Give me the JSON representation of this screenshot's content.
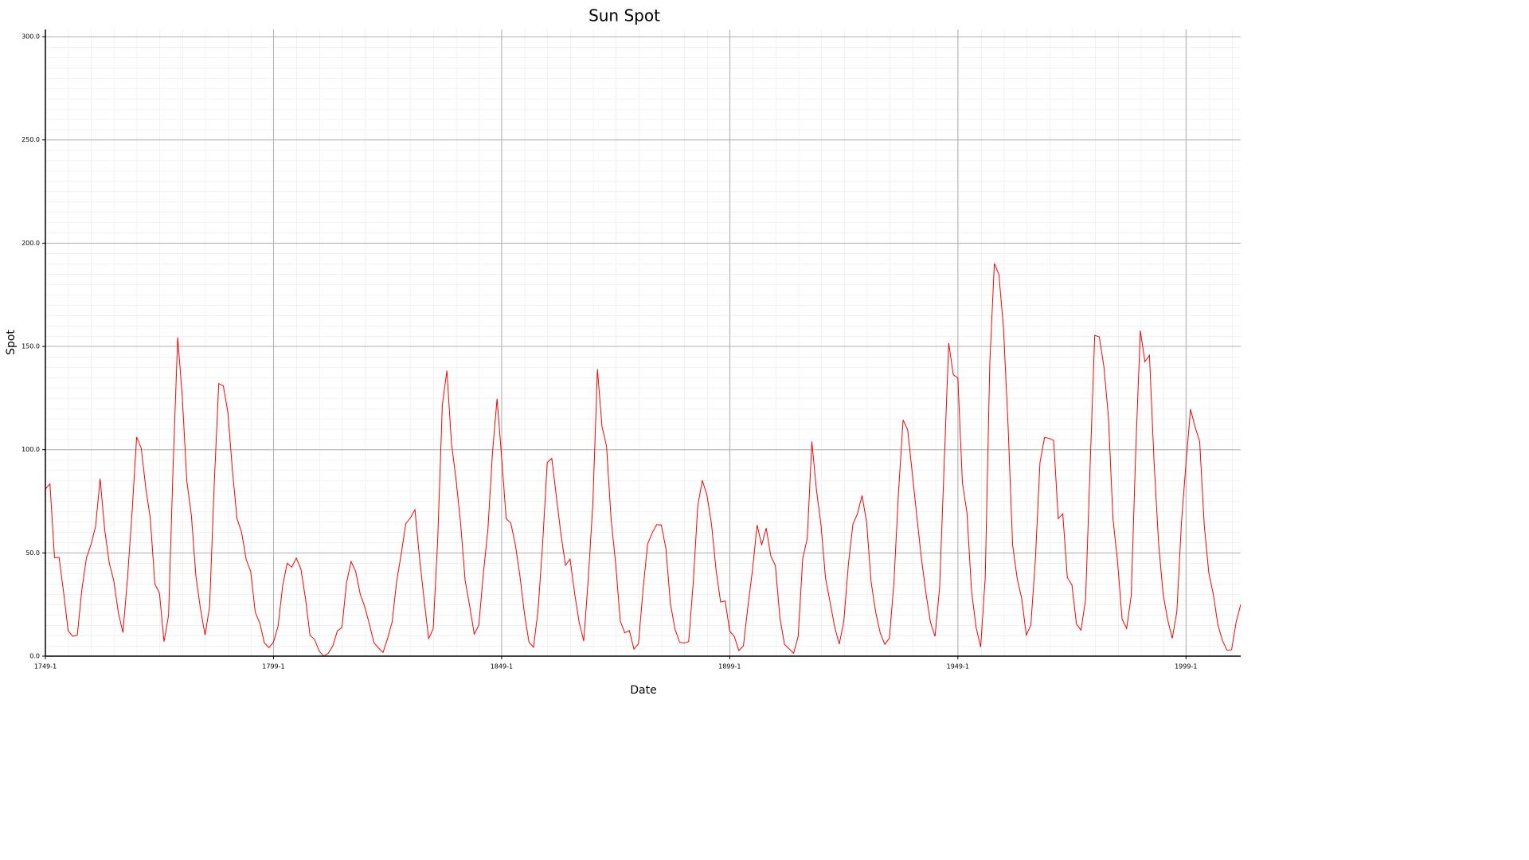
{
  "chart_data": {
    "type": "line",
    "title": "Sun Spot",
    "xlabel": "Date",
    "ylabel": "Spot",
    "xlim": [
      1749,
      2011
    ],
    "ylim": [
      0,
      303.5
    ],
    "xticks": [
      {
        "value": 1749,
        "label": "1749-1"
      },
      {
        "value": 1799,
        "label": "1799-1"
      },
      {
        "value": 1849,
        "label": "1849-1"
      },
      {
        "value": 1899,
        "label": "1899-1"
      },
      {
        "value": 1949,
        "label": "1949-1"
      },
      {
        "value": 1999,
        "label": "1999-1"
      }
    ],
    "yticks": [
      {
        "value": 0,
        "label": "0.0"
      },
      {
        "value": 50,
        "label": "50.0"
      },
      {
        "value": 100,
        "label": "100.0"
      },
      {
        "value": 150,
        "label": "150.0"
      },
      {
        "value": 200,
        "label": "200.0"
      },
      {
        "value": 250,
        "label": "250.0"
      },
      {
        "value": 300,
        "label": "300.0"
      }
    ],
    "grid": true,
    "x": [
      1749,
      1750,
      1751,
      1752,
      1753,
      1754,
      1755,
      1756,
      1757,
      1758,
      1759,
      1760,
      1761,
      1762,
      1763,
      1764,
      1765,
      1766,
      1767,
      1768,
      1769,
      1770,
      1771,
      1772,
      1773,
      1774,
      1775,
      1776,
      1777,
      1778,
      1779,
      1780,
      1781,
      1782,
      1783,
      1784,
      1785,
      1786,
      1787,
      1788,
      1789,
      1790,
      1791,
      1792,
      1793,
      1794,
      1795,
      1796,
      1797,
      1798,
      1799,
      1800,
      1801,
      1802,
      1803,
      1804,
      1805,
      1806,
      1807,
      1808,
      1809,
      1810,
      1811,
      1812,
      1813,
      1814,
      1815,
      1816,
      1817,
      1818,
      1819,
      1820,
      1821,
      1822,
      1823,
      1824,
      1825,
      1826,
      1827,
      1828,
      1829,
      1830,
      1831,
      1832,
      1833,
      1834,
      1835,
      1836,
      1837,
      1838,
      1839,
      1840,
      1841,
      1842,
      1843,
      1844,
      1845,
      1846,
      1847,
      1848,
      1849,
      1850,
      1851,
      1852,
      1853,
      1854,
      1855,
      1856,
      1857,
      1858,
      1859,
      1860,
      1861,
      1862,
      1863,
      1864,
      1865,
      1866,
      1867,
      1868,
      1869,
      1870,
      1871,
      1872,
      1873,
      1874,
      1875,
      1876,
      1877,
      1878,
      1879,
      1880,
      1881,
      1882,
      1883,
      1884,
      1885,
      1886,
      1887,
      1888,
      1889,
      1890,
      1891,
      1892,
      1893,
      1894,
      1895,
      1896,
      1897,
      1898,
      1899,
      1900,
      1901,
      1902,
      1903,
      1904,
      1905,
      1906,
      1907,
      1908,
      1909,
      1910,
      1911,
      1912,
      1913,
      1914,
      1915,
      1916,
      1917,
      1918,
      1919,
      1920,
      1921,
      1922,
      1923,
      1924,
      1925,
      1926,
      1927,
      1928,
      1929,
      1930,
      1931,
      1932,
      1933,
      1934,
      1935,
      1936,
      1937,
      1938,
      1939,
      1940,
      1941,
      1942,
      1943,
      1944,
      1945,
      1946,
      1947,
      1948,
      1949,
      1950,
      1951,
      1952,
      1953,
      1954,
      1955,
      1956,
      1957,
      1958,
      1959,
      1960,
      1961,
      1962,
      1963,
      1964,
      1965,
      1966,
      1967,
      1968,
      1969,
      1970,
      1971,
      1972,
      1973,
      1974,
      1975,
      1976,
      1977,
      1978,
      1979,
      1980,
      1981,
      1982,
      1983,
      1984,
      1985,
      1986,
      1987,
      1988,
      1989,
      1990,
      1991,
      1992,
      1993,
      1994,
      1995,
      1996,
      1997,
      1998,
      1999,
      2000,
      2001,
      2002,
      2003,
      2004,
      2005,
      2006,
      2007,
      2008,
      2009,
      2010,
      2011
    ],
    "series": [
      {
        "name": "Spot",
        "color": "#ff0000",
        "values": [
          80.9,
          83.4,
          47.7,
          47.8,
          30.7,
          12.2,
          9.6,
          10.2,
          32.4,
          47.6,
          54.0,
          62.9,
          85.9,
          61.2,
          45.1,
          36.4,
          20.9,
          11.4,
          37.8,
          69.8,
          106.1,
          100.8,
          81.6,
          66.5,
          34.8,
          30.6,
          7.0,
          19.8,
          92.5,
          154.4,
          125.9,
          84.8,
          68.1,
          38.5,
          22.8,
          10.2,
          24.1,
          82.9,
          132.0,
          130.9,
          118.1,
          89.9,
          66.6,
          60.0,
          46.9,
          41.0,
          21.3,
          16.0,
          6.4,
          4.1,
          6.8,
          14.5,
          34.0,
          45.0,
          43.1,
          47.5,
          42.2,
          28.1,
          10.1,
          8.1,
          2.5,
          0.0,
          1.4,
          5.0,
          12.2,
          13.9,
          35.4,
          45.8,
          41.1,
          30.1,
          23.9,
          15.6,
          6.6,
          4.0,
          1.8,
          8.5,
          16.6,
          36.3,
          49.6,
          64.2,
          67.0,
          70.9,
          47.8,
          27.5,
          8.5,
          13.2,
          56.9,
          121.5,
          138.3,
          103.2,
          85.7,
          64.6,
          36.7,
          24.2,
          10.7,
          15.0,
          40.1,
          61.5,
          98.5,
          124.7,
          96.3,
          66.6,
          64.5,
          54.1,
          39.0,
          20.6,
          6.7,
          4.3,
          22.7,
          54.8,
          93.8,
          95.8,
          77.2,
          59.1,
          44.0,
          47.0,
          30.5,
          16.3,
          7.3,
          37.6,
          74.0,
          139.0,
          111.2,
          101.6,
          66.2,
          44.7,
          17.0,
          11.3,
          12.4,
          3.4,
          6.0,
          32.3,
          54.3,
          59.7,
          63.7,
          63.5,
          52.2,
          25.4,
          13.1,
          6.8,
          6.3,
          7.1,
          35.6,
          73.0,
          85.1,
          78.0,
          64.0,
          41.8,
          26.2,
          26.7,
          12.1,
          9.5,
          2.7,
          5.0,
          24.4,
          42.0,
          63.5,
          53.8,
          62.0,
          48.5,
          43.9,
          18.6,
          5.7,
          3.6,
          1.4,
          9.6,
          47.4,
          57.1,
          103.9,
          80.6,
          63.6,
          37.6,
          26.1,
          14.2,
          5.8,
          16.7,
          44.3,
          63.9,
          69.0,
          77.8,
          64.9,
          35.7,
          21.2,
          11.1,
          5.7,
          8.7,
          36.1,
          79.7,
          114.4,
          109.6,
          88.8,
          67.8,
          47.5,
          30.6,
          16.3,
          9.6,
          33.2,
          92.6,
          151.6,
          136.3,
          134.7,
          83.9,
          69.4,
          31.5,
          13.9,
          4.4,
          38.0,
          141.7,
          190.2,
          184.8,
          159.0,
          112.3,
          53.9,
          37.6,
          27.9,
          10.2,
          15.1,
          47.0,
          93.8,
          105.9,
          105.5,
          104.5,
          66.6,
          68.9,
          38.0,
          34.5,
          15.5,
          12.6,
          27.5,
          92.5,
          155.4,
          154.6,
          140.4,
          115.9,
          66.6,
          45.9,
          17.9,
          13.4,
          29.4,
          100.2,
          157.6,
          142.6,
          145.7,
          94.3,
          54.6,
          29.9,
          17.5,
          8.6,
          21.5,
          64.3,
          93.3,
          119.6,
          111.0,
          104.0,
          63.7,
          40.4,
          29.8,
          15.2,
          7.5,
          2.9,
          3.1,
          16.5,
          25.0
        ]
      }
    ]
  }
}
